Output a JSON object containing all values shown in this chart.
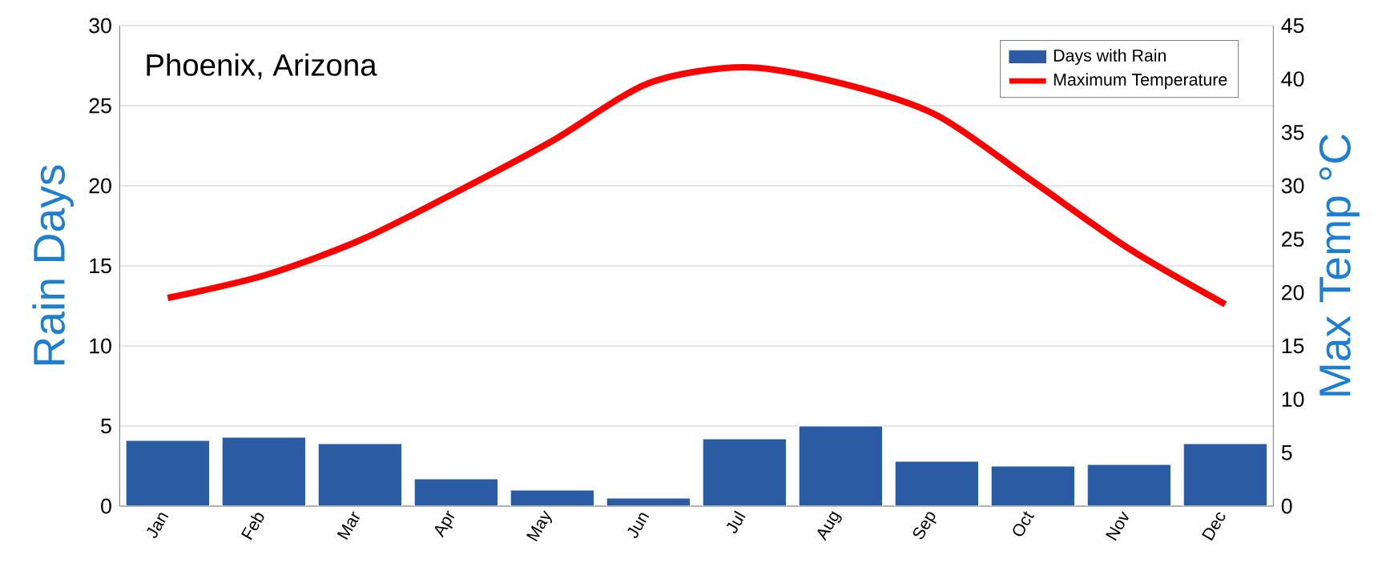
{
  "chart_data": {
    "type": "bar",
    "title": "Phoenix, Arizona",
    "categories": [
      "Jan",
      "Feb",
      "Mar",
      "Apr",
      "May",
      "Jun",
      "Jul",
      "Aug",
      "Sep",
      "Oct",
      "Nov",
      "Dec"
    ],
    "series": [
      {
        "name": "Days with Rain",
        "color": "#2a5ba3",
        "values": [
          4.1,
          4.3,
          3.9,
          1.7,
          1.0,
          0.5,
          4.2,
          5.0,
          2.8,
          2.5,
          2.6,
          3.9
        ]
      },
      {
        "name": "Maximum Temperature",
        "type": "line",
        "axis": "y2",
        "color": "#ff0000",
        "values": [
          19.5,
          21.6,
          24.9,
          29.4,
          34.2,
          39.6,
          41.1,
          39.6,
          36.6,
          30.4,
          24.1,
          18.9
        ]
      }
    ],
    "ylabel": "Rain Days",
    "y2label": "Max Temp °C",
    "ylim": [
      0,
      30
    ],
    "yticks": [
      0,
      5,
      10,
      15,
      20,
      25,
      30
    ],
    "y2lim": [
      0,
      45
    ],
    "y2ticks": [
      0,
      5,
      10,
      15,
      20,
      25,
      30,
      35,
      40,
      45
    ],
    "grid": "y",
    "legend": "top right"
  }
}
